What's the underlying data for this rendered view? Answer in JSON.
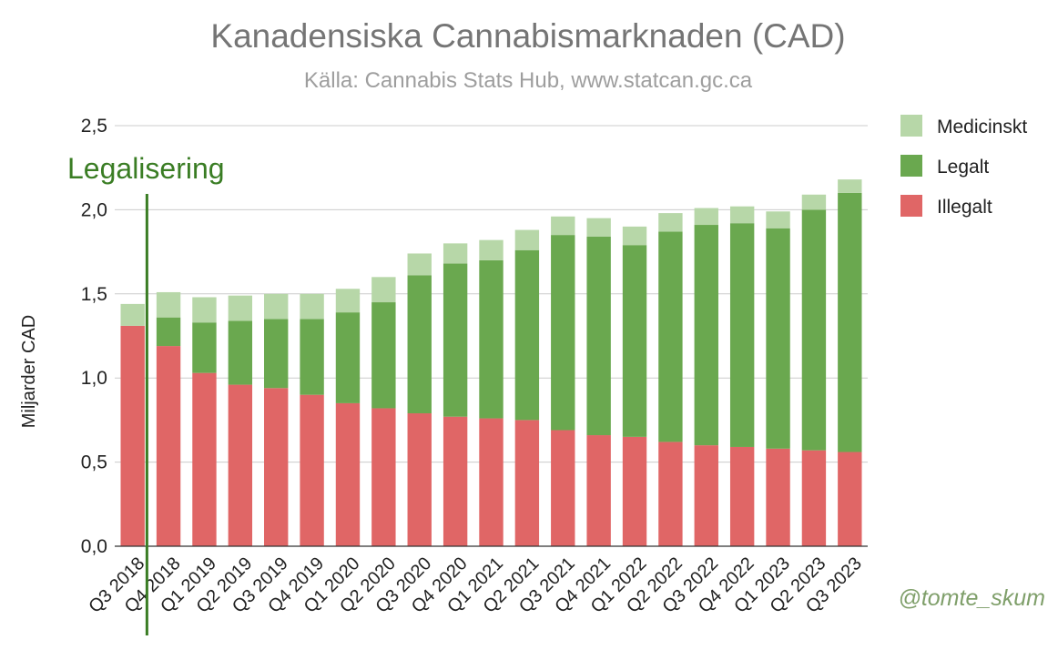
{
  "colors": {
    "medicinskt": "#b7d7a8",
    "legalt": "#6aa84f",
    "illegalt": "#e06666",
    "legalization_line": "#3a7d24",
    "gridline": "#cccccc"
  },
  "chart_data": {
    "type": "bar",
    "stacked": true,
    "title": "Kanadensiska Cannabismarknaden (CAD)",
    "subtitle": "Källa: Cannabis Stats Hub, www.statcan.gc.ca",
    "ylabel": "Miljarder CAD",
    "xlabel": "",
    "ylim": [
      0,
      2.5
    ],
    "yticks": [
      "0,0",
      "0,5",
      "1,0",
      "1,5",
      "2,0",
      "2,5"
    ],
    "grid": true,
    "legend_position": "right",
    "categories": [
      "Q3 2018",
      "Q4 2018",
      "Q1 2019",
      "Q2 2019",
      "Q3 2019",
      "Q4 2019",
      "Q1 2020",
      "Q2 2020",
      "Q3 2020",
      "Q4 2020",
      "Q1 2021",
      "Q2 2021",
      "Q3 2021",
      "Q4 2021",
      "Q1 2022",
      "Q2 2022",
      "Q3 2022",
      "Q4 2022",
      "Q1 2023",
      "Q2 2023",
      "Q3 2023"
    ],
    "series": [
      {
        "name": "Illegalt",
        "color_key": "illegalt",
        "values": [
          1.31,
          1.19,
          1.03,
          0.96,
          0.94,
          0.9,
          0.85,
          0.82,
          0.79,
          0.77,
          0.76,
          0.75,
          0.69,
          0.66,
          0.65,
          0.62,
          0.6,
          0.59,
          0.58,
          0.57,
          0.56
        ]
      },
      {
        "name": "Legalt",
        "color_key": "legalt",
        "values": [
          0.0,
          0.17,
          0.3,
          0.38,
          0.41,
          0.45,
          0.54,
          0.63,
          0.82,
          0.91,
          0.94,
          1.01,
          1.16,
          1.18,
          1.14,
          1.25,
          1.31,
          1.33,
          1.31,
          1.43,
          1.54
        ]
      },
      {
        "name": "Medicinskt",
        "color_key": "medicinskt",
        "values": [
          0.13,
          0.15,
          0.15,
          0.15,
          0.15,
          0.15,
          0.14,
          0.15,
          0.13,
          0.12,
          0.12,
          0.12,
          0.11,
          0.11,
          0.11,
          0.11,
          0.1,
          0.1,
          0.1,
          0.09,
          0.08
        ]
      }
    ],
    "legend": [
      "Medicinskt",
      "Legalt",
      "Illegalt"
    ],
    "annotations": [
      {
        "text": "Legalisering",
        "category": "Q4 2018"
      }
    ]
  },
  "watermark": "@tomte_skum"
}
